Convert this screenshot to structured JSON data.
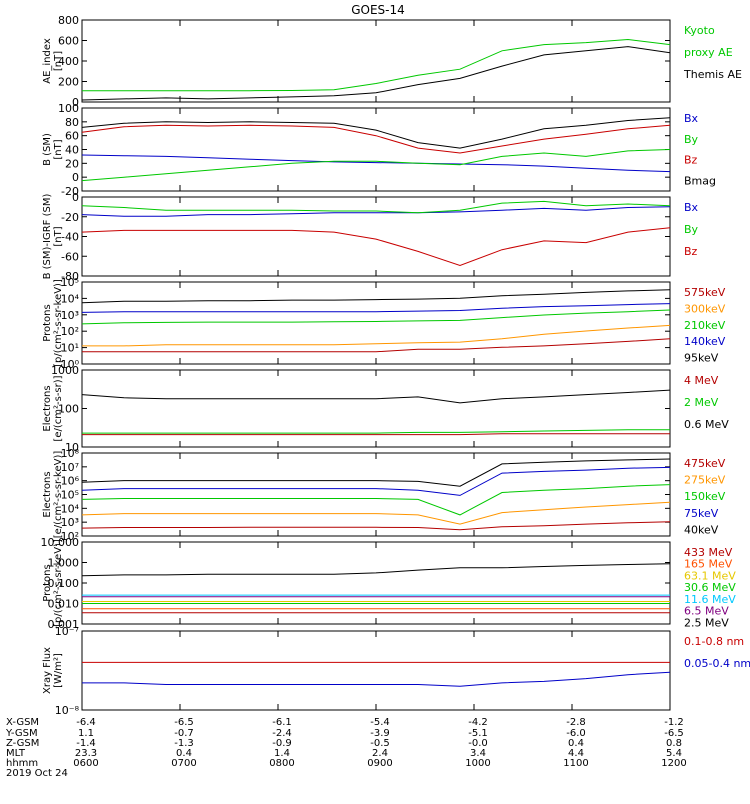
{
  "title": "GOES-14",
  "panels": [
    {
      "id": "ae",
      "ylabel": [
        "AE_index",
        "[nT]"
      ],
      "scale": "linear",
      "ylim": [
        0,
        800
      ],
      "yticks": [
        "0",
        "200",
        "400",
        "600",
        "800"
      ],
      "legend": [
        {
          "text": "Kyoto",
          "color": "#00c800"
        },
        {
          "text": "proxy AE",
          "color": "#00c800"
        },
        {
          "text": "Themis AE",
          "color": "#000000"
        }
      ]
    },
    {
      "id": "bsm",
      "ylabel": [
        "B (SM)",
        "[nT]"
      ],
      "scale": "linear",
      "ylim": [
        -20,
        100
      ],
      "yticks": [
        "-20",
        "0",
        "20",
        "40",
        "60",
        "80",
        "100"
      ],
      "legend": [
        {
          "text": "Bx",
          "color": "#0000c8"
        },
        {
          "text": "By",
          "color": "#00c800"
        },
        {
          "text": "Bz",
          "color": "#c80000"
        },
        {
          "text": "Bmag",
          "color": "#000000"
        }
      ]
    },
    {
      "id": "bigrf",
      "ylabel": [
        "B (SM)-IGRF (SM)",
        "[nT]"
      ],
      "scale": "linear",
      "ylim": [
        -80,
        10
      ],
      "yticks": [
        "-80",
        "-60",
        "-40",
        "-20",
        "0"
      ],
      "legend": [
        {
          "text": "Bx",
          "color": "#0000c8"
        },
        {
          "text": "By",
          "color": "#00c800"
        },
        {
          "text": "Bz",
          "color": "#c80000"
        }
      ]
    },
    {
      "id": "protons1",
      "ylabel": [
        "Protons",
        "[p/(cm²-s-sr-keV)]"
      ],
      "scale": "log",
      "ylim": [
        0.3,
        100000
      ],
      "yticks": [
        "10⁰",
        "10¹",
        "10²",
        "10³",
        "10⁴",
        "10⁵"
      ],
      "legend": [
        {
          "text": "575keV",
          "color": "#b40000"
        },
        {
          "text": "300keV",
          "color": "#ff9600"
        },
        {
          "text": "210keV",
          "color": "#00c800"
        },
        {
          "text": "140keV",
          "color": "#0000c8"
        },
        {
          "text": "95keV",
          "color": "#000000"
        }
      ]
    },
    {
      "id": "electrons1",
      "ylabel": [
        "Electrons",
        "[e/(cm²-s-sr)]"
      ],
      "scale": "log",
      "ylim": [
        10,
        1000
      ],
      "yticks": [
        "10",
        "100",
        "1000"
      ],
      "legend": [
        {
          "text": "4 MeV",
          "color": "#b40000"
        },
        {
          "text": "2 MeV",
          "color": "#00c800"
        },
        {
          "text": "0.6 MeV",
          "color": "#000000"
        }
      ]
    },
    {
      "id": "electrons2",
      "ylabel": [
        "Electrons",
        "[e/(cm²-s-sr-keV)]"
      ],
      "scale": "log",
      "ylim": [
        50,
        100000000
      ],
      "yticks": [
        "10²",
        "10³",
        "10⁴",
        "10⁵",
        "10⁶",
        "10⁷",
        "10⁸"
      ],
      "legend": [
        {
          "text": "475keV",
          "color": "#b40000"
        },
        {
          "text": "275keV",
          "color": "#ff9600"
        },
        {
          "text": "150keV",
          "color": "#00c800"
        },
        {
          "text": "75keV",
          "color": "#0000c8"
        },
        {
          "text": "40keV",
          "color": "#000000"
        }
      ]
    },
    {
      "id": "protons2",
      "ylabel": [
        "Protons",
        "[p/(cm²-s-sr-keV)]"
      ],
      "scale": "log",
      "ylim": [
        0.0008,
        100
      ],
      "yticks": [
        "0.001",
        "0.010",
        "0.100",
        "1.000",
        "10.000"
      ],
      "legend": [
        {
          "text": "433 MeV",
          "color": "#b40000"
        },
        {
          "text": "165 MeV",
          "color": "#ff5000"
        },
        {
          "text": "63.1 MeV",
          "color": "#e6c800"
        },
        {
          "text": "30.6 MeV",
          "color": "#00c800"
        },
        {
          "text": "11.6 MeV",
          "color": "#00c8ff"
        },
        {
          "text": "6.5 MeV",
          "color": "#800080"
        },
        {
          "text": "2.5 MeV",
          "color": "#000000"
        }
      ]
    },
    {
      "id": "xray",
      "ylabel": [
        "Xray Flux",
        "[W/m²]"
      ],
      "scale": "log",
      "ylim": [
        1e-08,
        1e-07
      ],
      "yticks": [
        "10⁻⁸",
        "10⁻⁷"
      ],
      "legend": [
        {
          "text": "0.1-0.8 nm",
          "color": "#c80000"
        },
        {
          "text": "0.05-0.4 nm",
          "color": "#0000c8"
        }
      ]
    }
  ],
  "ephemeris": {
    "row_labels": [
      "X-GSM",
      "Y-GSM",
      "Z-GSM",
      "MLT",
      "hhmm"
    ],
    "columns": [
      [
        "-6.4",
        "1.1",
        "-1.4",
        "23.3",
        "0600"
      ],
      [
        "-6.5",
        "-0.7",
        "-1.3",
        "0.4",
        "0700"
      ],
      [
        "-6.1",
        "-2.4",
        "-0.9",
        "1.4",
        "0800"
      ],
      [
        "-5.4",
        "-3.9",
        "-0.5",
        "2.4",
        "0900"
      ],
      [
        "-4.2",
        "-5.1",
        "-0.0",
        "3.4",
        "1000"
      ],
      [
        "-2.8",
        "-6.0",
        "0.4",
        "4.4",
        "1100"
      ],
      [
        "-1.2",
        "-6.5",
        "0.8",
        "5.4",
        "1200"
      ]
    ],
    "date": "2019 Oct 24"
  },
  "chart_data": {
    "type": "line",
    "title": "GOES-14",
    "x": [
      "0600",
      "0630",
      "0700",
      "0730",
      "0800",
      "0830",
      "0900",
      "0930",
      "1000",
      "1015",
      "1030",
      "1045",
      "1100",
      "1130",
      "1200"
    ],
    "panels": [
      {
        "id": "ae",
        "series": [
          {
            "name": "Kyoto proxy AE",
            "color": "#00c800",
            "values": [
              110,
              110,
              110,
              110,
              110,
              112,
              120,
              180,
              260,
              320,
              500,
              560,
              580,
              610,
              560
            ]
          },
          {
            "name": "Themis AE",
            "color": "#000000",
            "values": [
              20,
              30,
              40,
              30,
              40,
              50,
              60,
              90,
              170,
              230,
              350,
              460,
              500,
              540,
              480
            ]
          }
        ]
      },
      {
        "id": "bsm",
        "series": [
          {
            "name": "Bx",
            "color": "#0000c8",
            "values": [
              32,
              31,
              30,
              28,
              26,
              24,
              22,
              21,
              20,
              19,
              18,
              16,
              13,
              10,
              8
            ]
          },
          {
            "name": "By",
            "color": "#00c800",
            "values": [
              -5,
              0,
              5,
              10,
              15,
              20,
              23,
              23,
              20,
              18,
              30,
              35,
              30,
              38,
              40
            ]
          },
          {
            "name": "Bz",
            "color": "#c80000",
            "values": [
              65,
              73,
              75,
              74,
              75,
              74,
              72,
              60,
              42,
              35,
              45,
              55,
              62,
              70,
              75
            ]
          },
          {
            "name": "Bmag",
            "color": "#000000",
            "values": [
              72,
              78,
              80,
              79,
              80,
              79,
              78,
              68,
              50,
              42,
              55,
              70,
              75,
              82,
              86
            ]
          }
        ]
      },
      {
        "id": "bigrf",
        "series": [
          {
            "name": "Bx",
            "color": "#0000c8",
            "values": [
              -10,
              -12,
              -12,
              -10,
              -10,
              -9,
              -8,
              -8,
              -8,
              -7,
              -5,
              -3,
              -5,
              -2,
              -1
            ]
          },
          {
            "name": "By",
            "color": "#00c800",
            "values": [
              0,
              -2,
              -5,
              -5,
              -5,
              -5,
              -6,
              -6,
              -8,
              -5,
              3,
              5,
              0,
              2,
              0
            ]
          },
          {
            "name": "Bz",
            "color": "#c80000",
            "values": [
              -30,
              -28,
              -28,
              -28,
              -28,
              -28,
              -30,
              -38,
              -52,
              -68,
              -50,
              -40,
              -42,
              -30,
              -25
            ]
          }
        ]
      },
      {
        "id": "protons1",
        "series": [
          {
            "name": "575keV",
            "color": "#b40000",
            "values": [
              2,
              2,
              2,
              2,
              2,
              2,
              2,
              2,
              3,
              3,
              4,
              5,
              7,
              10,
              15
            ]
          },
          {
            "name": "300keV",
            "color": "#ff9600",
            "values": [
              5,
              5,
              6,
              6,
              6,
              6,
              6,
              7,
              8,
              9,
              15,
              30,
              50,
              80,
              120
            ]
          },
          {
            "name": "210keV",
            "color": "#00c800",
            "values": [
              150,
              180,
              190,
              200,
              200,
              200,
              210,
              220,
              240,
              260,
              400,
              600,
              800,
              1000,
              1300
            ]
          },
          {
            "name": "140keV",
            "color": "#0000c8",
            "values": [
              900,
              1000,
              1000,
              1000,
              1000,
              1000,
              1000,
              1000,
              1100,
              1200,
              1700,
              2200,
              2500,
              3000,
              3500
            ]
          },
          {
            "name": "95keV",
            "color": "#000000",
            "values": [
              4000,
              5000,
              5000,
              5500,
              5500,
              6000,
              6000,
              6500,
              7000,
              8000,
              12000,
              15000,
              20000,
              25000,
              30000
            ]
          }
        ]
      },
      {
        "id": "electrons1",
        "series": [
          {
            "name": "4 MeV",
            "color": "#b40000",
            "values": [
              21,
              21,
              21,
              21,
              21,
              21,
              21,
              21,
              21,
              21,
              22,
              22,
              22,
              22,
              22
            ]
          },
          {
            "name": "2 MeV",
            "color": "#00c800",
            "values": [
              23,
              23,
              23,
              23,
              23,
              23,
              23,
              23,
              24,
              24,
              25,
              26,
              27,
              28,
              28
            ]
          },
          {
            "name": "0.6 MeV",
            "color": "#000000",
            "values": [
              230,
              190,
              180,
              180,
              180,
              180,
              180,
              180,
              200,
              140,
              180,
              200,
              230,
              260,
              300
            ]
          }
        ]
      },
      {
        "id": "electrons2",
        "series": [
          {
            "name": "475keV",
            "color": "#b40000",
            "values": [
              200,
              220,
              220,
              220,
              230,
              230,
              230,
              230,
              220,
              150,
              250,
              300,
              400,
              500,
              600
            ]
          },
          {
            "name": "275keV",
            "color": "#ff9600",
            "values": [
              2000,
              2500,
              2500,
              2500,
              2500,
              2500,
              2500,
              2500,
              2000,
              400,
              3000,
              5000,
              8000,
              12000,
              18000
            ]
          },
          {
            "name": "150keV",
            "color": "#00c800",
            "values": [
              30000,
              35000,
              35000,
              35000,
              35000,
              35000,
              35000,
              35000,
              30000,
              2000,
              100000,
              150000,
              200000,
              300000,
              400000
            ]
          },
          {
            "name": "75keV",
            "color": "#0000c8",
            "values": [
              150000,
              200000,
              200000,
              200000,
              200000,
              200000,
              200000,
              200000,
              150000,
              60000,
              3000000,
              4000000,
              5000000,
              7000000,
              8000000
            ]
          },
          {
            "name": "40keV",
            "color": "#000000",
            "values": [
              600000,
              800000,
              800000,
              800000,
              800000,
              800000,
              800000,
              800000,
              700000,
              300000,
              15000000,
              20000000,
              25000000,
              30000000,
              35000000
            ]
          }
        ]
      },
      {
        "id": "protons2",
        "series": [
          {
            "name": "433 MeV",
            "color": "#b40000",
            "values": [
              0.004,
              0.004,
              0.004,
              0.004,
              0.004,
              0.004,
              0.004,
              0.004,
              0.004,
              0.004,
              0.004,
              0.004,
              0.004,
              0.004,
              0.004
            ]
          },
          {
            "name": "165 MeV",
            "color": "#ff5000",
            "values": [
              0.007,
              0.007,
              0.007,
              0.007,
              0.007,
              0.007,
              0.007,
              0.007,
              0.007,
              0.007,
              0.007,
              0.007,
              0.007,
              0.007,
              0.007
            ]
          },
          {
            "name": "63.1 MeV",
            "color": "#e6c800",
            "values": [
              0.02,
              0.02,
              0.02,
              0.02,
              0.02,
              0.02,
              0.02,
              0.02,
              0.02,
              0.02,
              0.02,
              0.02,
              0.02,
              0.02,
              0.02
            ]
          },
          {
            "name": "30.6 MeV",
            "color": "#00c800",
            "values": [
              0.015,
              0.015,
              0.015,
              0.015,
              0.015,
              0.015,
              0.015,
              0.015,
              0.015,
              0.015,
              0.015,
              0.015,
              0.015,
              0.015,
              0.015
            ]
          },
          {
            "name": "11.6 MeV",
            "color": "#00c8ff",
            "values": [
              0.05,
              0.05,
              0.05,
              0.05,
              0.05,
              0.05,
              0.05,
              0.05,
              0.05,
              0.05,
              0.05,
              0.05,
              0.05,
              0.05,
              0.05
            ]
          },
          {
            "name": "6.5 MeV",
            "color": "#800080",
            "values": [
              0.04,
              0.04,
              0.04,
              0.04,
              0.04,
              0.04,
              0.04,
              0.04,
              0.04,
              0.04,
              0.04,
              0.04,
              0.04,
              0.04,
              0.04
            ]
          },
          {
            "name": "2.5 MeV",
            "color": "#000000",
            "values": [
              0.8,
              0.9,
              0.9,
              1.0,
              1.0,
              1.0,
              1.0,
              1.2,
              1.8,
              2.5,
              2.5,
              3.0,
              3.5,
              4.0,
              4.5
            ]
          }
        ]
      },
      {
        "id": "xray",
        "series": [
          {
            "name": "0.1-0.8 nm",
            "color": "#c80000",
            "values": [
              4e-08,
              4e-08,
              4e-08,
              4e-08,
              4e-08,
              4e-08,
              4e-08,
              4e-08,
              4e-08,
              4e-08,
              4e-08,
              4e-08,
              4e-08,
              4e-08,
              4e-08
            ]
          },
          {
            "name": "0.05-0.4 nm",
            "color": "#0000c8",
            "values": [
              2.2e-08,
              2.2e-08,
              2.1e-08,
              2.1e-08,
              2.1e-08,
              2.1e-08,
              2.1e-08,
              2.1e-08,
              2.1e-08,
              2e-08,
              2.2e-08,
              2.3e-08,
              2.5e-08,
              2.8e-08,
              3e-08
            ]
          }
        ]
      }
    ]
  }
}
